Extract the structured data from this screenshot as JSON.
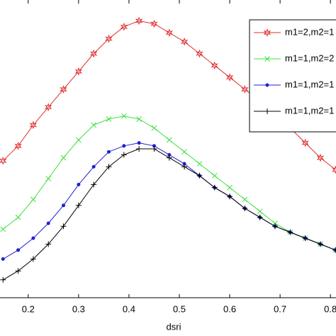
{
  "chart_data": {
    "type": "line",
    "x_label": "dsri",
    "x": [
      0.15,
      0.18,
      0.21,
      0.24,
      0.27,
      0.3,
      0.33,
      0.36,
      0.39,
      0.42,
      0.45,
      0.48,
      0.51,
      0.54,
      0.57,
      0.6,
      0.63,
      0.66,
      0.69,
      0.72,
      0.75,
      0.78,
      0.81
    ],
    "series": [
      {
        "name": "m1=2,m2=1",
        "color": "#e03030",
        "marker": "star",
        "values": [
          0.46,
          0.51,
          0.58,
          0.64,
          0.7,
          0.76,
          0.82,
          0.87,
          0.91,
          0.93,
          0.92,
          0.89,
          0.86,
          0.82,
          0.78,
          0.74,
          0.7,
          0.66,
          0.61,
          0.57,
          0.52,
          0.47,
          0.43
        ]
      },
      {
        "name": "m1=1,m2=2",
        "color": "#40e040",
        "marker": "x",
        "values": [
          0.23,
          0.27,
          0.33,
          0.4,
          0.47,
          0.53,
          0.58,
          0.6,
          0.61,
          0.6,
          0.57,
          0.53,
          0.49,
          0.45,
          0.41,
          0.37,
          0.33,
          0.29,
          0.25,
          0.22,
          0.2,
          0.18,
          0.16
        ]
      },
      {
        "name": "m1=1,m2=1",
        "color": "#2020d0",
        "marker": "dot",
        "values": [
          0.13,
          0.16,
          0.2,
          0.25,
          0.31,
          0.38,
          0.44,
          0.49,
          0.51,
          0.52,
          0.51,
          0.48,
          0.45,
          0.41,
          0.37,
          0.34,
          0.3,
          0.27,
          0.24,
          0.22,
          0.2,
          0.18,
          0.16
        ]
      },
      {
        "name": "m1=1,m2=1",
        "color": "#000000",
        "marker": "plus",
        "values": [
          0.06,
          0.09,
          0.13,
          0.18,
          0.24,
          0.31,
          0.38,
          0.44,
          0.48,
          0.5,
          0.5,
          0.47,
          0.44,
          0.41,
          0.37,
          0.34,
          0.3,
          0.27,
          0.24,
          0.22,
          0.2,
          0.18,
          0.16
        ]
      }
    ],
    "xlim": [
      0.144,
      0.811
    ],
    "ylim": [
      0,
      1
    ],
    "xticks": [
      0.2,
      0.3,
      0.4,
      0.5,
      0.6,
      0.7,
      0.8
    ],
    "legend": "upper right"
  }
}
